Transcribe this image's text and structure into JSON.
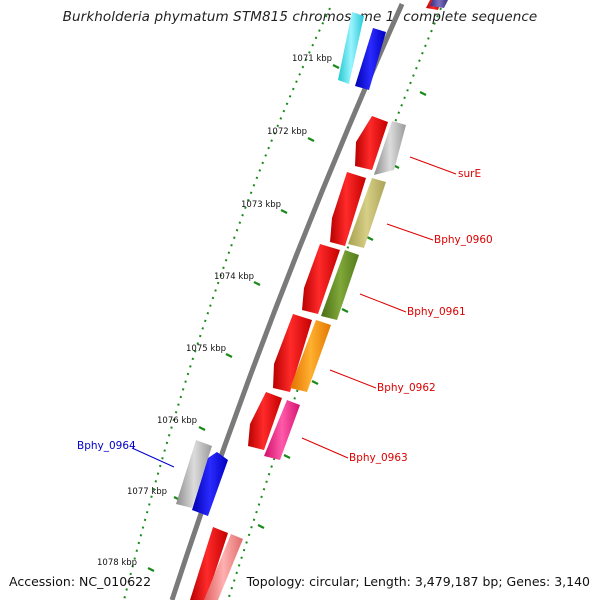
{
  "title": "Burkholderia phymatum STM815 chromosome 1, complete sequence",
  "footer": {
    "accession": "Accession: NC_010622",
    "summary": "Topology: circular; Length: 3,479,187 bp; Genes: 3,140"
  },
  "colors": {
    "backbone": "#7a7a7a",
    "tick": "#1a8a1a",
    "label_forward": "#dd0000",
    "label_reverse": "#0000cc"
  },
  "ticks": [
    "1071 kbp",
    "1072 kbp",
    "1073 kbp",
    "1074 kbp",
    "1075 kbp",
    "1076 kbp",
    "1077 kbp",
    "1078 kbp"
  ],
  "gene_labels": [
    "surE",
    "Bphy_0960",
    "Bphy_0961",
    "Bphy_0962",
    "Bphy_0963",
    "Bphy_0964"
  ]
}
